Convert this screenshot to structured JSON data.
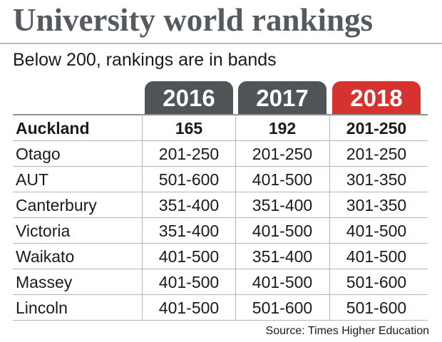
{
  "title": "University world rankings",
  "subtitle": "Below 200, rankings are in bands",
  "source": "Source: Times Higher Education",
  "colors": {
    "tab_gray": "#4f5457",
    "tab_red": "#d6322f",
    "title": "#555a5e"
  },
  "chart_data": {
    "type": "table",
    "title": "University world rankings",
    "subtitle": "Below 200, rankings are in bands",
    "columns": [
      "2016",
      "2017",
      "2018"
    ],
    "highlight_column": "2018",
    "rows": [
      {
        "name": "Auckland",
        "values": [
          "165",
          "192",
          "201-250"
        ],
        "bold": true
      },
      {
        "name": "Otago",
        "values": [
          "201-250",
          "201-250",
          "201-250"
        ]
      },
      {
        "name": "AUT",
        "values": [
          "501-600",
          "401-500",
          "301-350"
        ]
      },
      {
        "name": "Canterbury",
        "values": [
          "351-400",
          "351-400",
          "301-350"
        ]
      },
      {
        "name": "Victoria",
        "values": [
          "351-400",
          "401-500",
          "401-500"
        ]
      },
      {
        "name": "Waikato",
        "values": [
          "401-500",
          "351-400",
          "401-500"
        ]
      },
      {
        "name": "Massey",
        "values": [
          "401-500",
          "401-500",
          "501-600"
        ]
      },
      {
        "name": "Lincoln",
        "values": [
          "401-500",
          "501-600",
          "501-600"
        ]
      }
    ],
    "source": "Source: Times Higher Education"
  }
}
